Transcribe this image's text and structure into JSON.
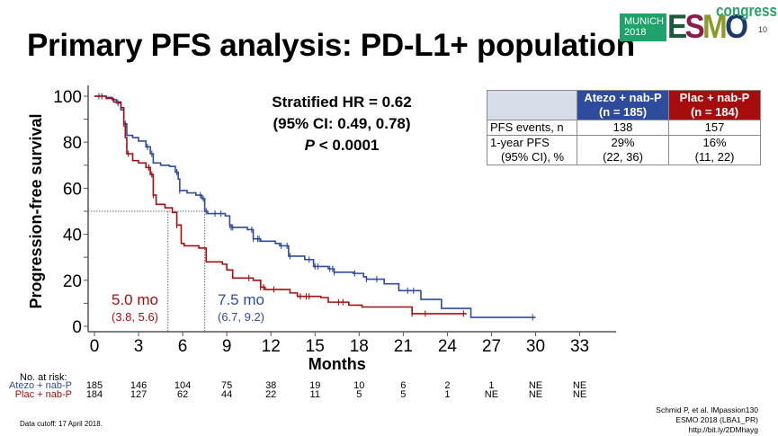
{
  "slide": {
    "title": "Primary PFS analysis: PD-L1+ population",
    "page_number": "10",
    "logo": {
      "city_line1": "MUNICH",
      "city_line2": "2018",
      "brand_letters": [
        "E",
        "S",
        "M",
        "O"
      ],
      "brand_colors": [
        "#1d5a3a",
        "#8a1c4a",
        "#8d9a2a",
        "#1a3a6a"
      ],
      "suffix": "congress",
      "box_color": "#1fa36b"
    },
    "hr": {
      "line1": "Stratified HR = 0.62",
      "line2": "(95% CI: 0.49, 0.78)",
      "p_label": "P",
      "p_value": " < 0.0001"
    },
    "table": {
      "headers": [
        "",
        "Atezo + nab-P\n(n = 185)",
        "Plac + nab-P\n(n = 184)"
      ],
      "header_atezo_1": "Atezo + nab-P",
      "header_atezo_2": "(n = 185)",
      "header_plac_1": "Plac + nab-P",
      "header_plac_2": "(n = 184)",
      "rows": [
        {
          "label": "PFS events, n",
          "atezo": "138",
          "plac": "157"
        },
        {
          "label_1": "1-year PFS",
          "label_2": "(95% CI), %",
          "atezo_1": "29%",
          "atezo_2": "(22, 36)",
          "plac_1": "16%",
          "plac_2": "(11, 22)"
        }
      ]
    },
    "at_risk": {
      "title": "No. at risk:",
      "atezo_label": "Atezo + nab-P",
      "plac_label": "Plac + nab-P",
      "timepoints": [
        0,
        3,
        6,
        9,
        12,
        15,
        18,
        21,
        24,
        27,
        30,
        33
      ],
      "atezo": [
        "185",
        "146",
        "104",
        "75",
        "38",
        "19",
        "10",
        "6",
        "2",
        "1",
        "NE",
        "NE"
      ],
      "plac": [
        "184",
        "127",
        "62",
        "44",
        "22",
        "11",
        "5",
        "5",
        "1",
        "NE",
        "NE",
        "NE"
      ]
    },
    "footer": {
      "cutoff": "Data cutoff: 17 April 2018.",
      "ref_line1": "Schmid P, et al. IMpassion130",
      "ref_line2": "ESMO 2018 (LBA1_PR)",
      "ref_line3": "http://bit.ly/2DMhayg"
    }
  },
  "chart_data": {
    "type": "line",
    "subtype": "kaplan-meier-step",
    "title": "",
    "xlabel": "Months",
    "ylabel": "Progression-free survival",
    "xlim": [
      0,
      35
    ],
    "ylim": [
      0,
      100
    ],
    "xticks": [
      0,
      3,
      6,
      9,
      12,
      15,
      18,
      21,
      24,
      27,
      30,
      33
    ],
    "yticks": [
      0,
      20,
      40,
      60,
      80,
      100
    ],
    "grid": false,
    "median_reference": {
      "y": 50
    },
    "annotations": [
      {
        "series": "Plac + nab-P",
        "text": "5.0 mo",
        "ci": "(3.8, 5.6)",
        "median_x": 5.0
      },
      {
        "series": "Atezo + nab-P",
        "text": "7.5 mo",
        "ci": "(6.7, 9.2)",
        "median_x": 7.5
      }
    ],
    "series": [
      {
        "name": "Atezo + nab-P",
        "color": "#2e4b9e",
        "x": [
          0,
          0.8,
          1.2,
          1.5,
          1.8,
          2.0,
          2.2,
          2.6,
          3.0,
          3.5,
          3.8,
          4.0,
          4.5,
          5.1,
          5.5,
          5.7,
          5.8,
          6.3,
          6.9,
          7.3,
          7.5,
          7.7,
          8.9,
          9.2,
          9.3,
          10.4,
          10.8,
          11.3,
          12.3,
          12.6,
          13.2,
          14.3,
          14.9,
          15.9,
          16.3,
          17.6,
          18.3,
          18.5,
          19.5,
          19.7,
          20.5,
          20.7,
          22.1,
          22.2,
          23.5,
          23.6,
          25.5,
          25.6,
          30.0
        ],
        "y": [
          100,
          99.5,
          98.5,
          97,
          94,
          88,
          83,
          82,
          80.5,
          78,
          75,
          71,
          70,
          69.5,
          67,
          64,
          59,
          58,
          57,
          55.5,
          50,
          49,
          48,
          44,
          43,
          42,
          38,
          37,
          36,
          35,
          30.5,
          29,
          26,
          25,
          23.5,
          23,
          21.5,
          20.5,
          20.5,
          18.5,
          18.5,
          15.5,
          15.5,
          11.7,
          11.7,
          7.8,
          7.8,
          3.9,
          3.9
        ],
        "censor_x": [
          0.3,
          1.6,
          2.1,
          3.6,
          3.9,
          5.6,
          5.8,
          7.2,
          7.4,
          7.6,
          8.2,
          8.6,
          9.2,
          9.3,
          9.4,
          10.7,
          10.8,
          11.1,
          11.2,
          12.7,
          13.1,
          13.3,
          14.6,
          15.0,
          15.2,
          16.0,
          16.2,
          16.3,
          17.7,
          18.5,
          19.2,
          21.3,
          21.7,
          29.8
        ]
      },
      {
        "name": "Plac + nab-P",
        "color": "#a60e0e",
        "x": [
          0,
          0.8,
          1.3,
          1.8,
          2.0,
          2.1,
          2.2,
          2.6,
          3.0,
          3.5,
          3.8,
          4.0,
          4.2,
          4.8,
          5.3,
          5.6,
          5.9,
          6.1,
          7.1,
          7.6,
          8.7,
          9.0,
          9.4,
          10.8,
          11.3,
          11.6,
          13.3,
          13.8,
          15.4,
          15.9,
          17.2,
          17.3,
          18.1,
          18.2,
          21.5,
          21.6,
          25.3
        ],
        "y": [
          100,
          99,
          97.5,
          95,
          88,
          82,
          75,
          72,
          71,
          69,
          66,
          57,
          53,
          51.5,
          49.5,
          44,
          36,
          35,
          34,
          28,
          27,
          24.5,
          21,
          20,
          17,
          16,
          14.5,
          13,
          12.5,
          10.5,
          10.5,
          9.2,
          9.2,
          8.4,
          8.4,
          5.5,
          5.5
        ],
        "censor_x": [
          0.5,
          2.0,
          2.3,
          3.7,
          3.9,
          4.0,
          5.6,
          10.5,
          11.3,
          11.5,
          12.2,
          14.0,
          14.4,
          14.6,
          16.6,
          16.9,
          21.6,
          22.5,
          25.1
        ]
      }
    ]
  }
}
